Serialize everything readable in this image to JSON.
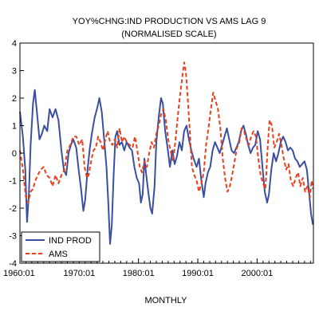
{
  "chart_data": {
    "type": "line",
    "title": "YOY%CHNG:IND PRODUCTION VS AMS LAG 9",
    "subtitle": "(NORMALISED SCALE)",
    "xlabel": "MONTHLY",
    "ylabel": "",
    "xlim": [
      1960.0,
      2009.5
    ],
    "ylim": [
      -4,
      4
    ],
    "y_ticks": [
      "4",
      "3",
      "2",
      "1",
      "0",
      "-1",
      "-2",
      "-3",
      "-4"
    ],
    "x_ticks": [
      {
        "label": "1960:01",
        "year": 1960.0
      },
      {
        "label": "1970:01",
        "year": 1970.0
      },
      {
        "label": "1980:01",
        "year": 1980.0
      },
      {
        "label": "1990:01",
        "year": 1990.0
      },
      {
        "label": "2000:01",
        "year": 2000.0
      }
    ],
    "legend_position": "bottom-left",
    "grid": false,
    "series": [
      {
        "name": "IND PROD",
        "color": "#3a4fa0",
        "style": "solid",
        "points": [
          [
            1960.0,
            1.5
          ],
          [
            1960.5,
            0.6
          ],
          [
            1960.9,
            -0.6
          ],
          [
            1961.2,
            -2.5
          ],
          [
            1961.5,
            -1.5
          ],
          [
            1961.8,
            0.3
          ],
          [
            1962.2,
            1.8
          ],
          [
            1962.5,
            2.3
          ],
          [
            1962.9,
            1.4
          ],
          [
            1963.3,
            0.5
          ],
          [
            1963.7,
            0.7
          ],
          [
            1964.1,
            1.0
          ],
          [
            1964.6,
            0.8
          ],
          [
            1965.0,
            1.6
          ],
          [
            1965.5,
            1.3
          ],
          [
            1966.0,
            1.6
          ],
          [
            1966.5,
            1.2
          ],
          [
            1967.0,
            0.1
          ],
          [
            1967.4,
            -0.6
          ],
          [
            1967.8,
            -0.8
          ],
          [
            1968.2,
            0.0
          ],
          [
            1968.6,
            0.3
          ],
          [
            1969.0,
            0.5
          ],
          [
            1969.5,
            0.2
          ],
          [
            1969.9,
            -0.6
          ],
          [
            1970.3,
            -1.3
          ],
          [
            1970.7,
            -2.1
          ],
          [
            1971.0,
            -1.7
          ],
          [
            1971.4,
            -0.6
          ],
          [
            1971.8,
            0.2
          ],
          [
            1972.2,
            0.8
          ],
          [
            1972.6,
            1.3
          ],
          [
            1973.0,
            1.6
          ],
          [
            1973.4,
            2.0
          ],
          [
            1973.8,
            1.5
          ],
          [
            1974.2,
            0.5
          ],
          [
            1974.6,
            -0.5
          ],
          [
            1974.9,
            -1.8
          ],
          [
            1975.2,
            -3.3
          ],
          [
            1975.5,
            -2.6
          ],
          [
            1975.8,
            -0.8
          ],
          [
            1976.1,
            0.6
          ],
          [
            1976.4,
            0.8
          ],
          [
            1976.8,
            0.3
          ],
          [
            1977.2,
            0.4
          ],
          [
            1977.6,
            0.1
          ],
          [
            1978.0,
            0.4
          ],
          [
            1978.5,
            0.2
          ],
          [
            1978.9,
            0.1
          ],
          [
            1979.3,
            -0.5
          ],
          [
            1979.7,
            -0.9
          ],
          [
            1980.1,
            -1.1
          ],
          [
            1980.4,
            -1.8
          ],
          [
            1980.7,
            -1.5
          ],
          [
            1981.0,
            -0.2
          ],
          [
            1981.3,
            -0.8
          ],
          [
            1981.7,
            -1.5
          ],
          [
            1982.0,
            -2.0
          ],
          [
            1982.3,
            -2.2
          ],
          [
            1982.7,
            -1.2
          ],
          [
            1983.0,
            0.4
          ],
          [
            1983.4,
            1.3
          ],
          [
            1983.8,
            2.0
          ],
          [
            1984.1,
            1.8
          ],
          [
            1984.5,
            0.8
          ],
          [
            1984.9,
            0.2
          ],
          [
            1985.3,
            -0.5
          ],
          [
            1985.7,
            0.1
          ],
          [
            1986.1,
            -0.4
          ],
          [
            1986.5,
            -0.1
          ],
          [
            1986.9,
            0.4
          ],
          [
            1987.3,
            0.1
          ],
          [
            1987.7,
            0.8
          ],
          [
            1988.1,
            1.0
          ],
          [
            1988.5,
            0.5
          ],
          [
            1988.9,
            0.1
          ],
          [
            1989.3,
            -0.2
          ],
          [
            1989.8,
            -0.5
          ],
          [
            1990.2,
            -0.2
          ],
          [
            1990.6,
            -1.0
          ],
          [
            1991.0,
            -1.6
          ],
          [
            1991.3,
            -1.1
          ],
          [
            1991.7,
            -0.7
          ],
          [
            1992.1,
            -0.5
          ],
          [
            1992.5,
            0.1
          ],
          [
            1992.9,
            0.4
          ],
          [
            1993.3,
            0.2
          ],
          [
            1993.7,
            0.0
          ],
          [
            1994.1,
            0.3
          ],
          [
            1994.5,
            0.6
          ],
          [
            1994.9,
            0.9
          ],
          [
            1995.3,
            0.5
          ],
          [
            1995.7,
            0.1
          ],
          [
            1996.1,
            0.0
          ],
          [
            1996.5,
            0.2
          ],
          [
            1996.9,
            0.4
          ],
          [
            1997.3,
            0.8
          ],
          [
            1997.7,
            1.0
          ],
          [
            1998.1,
            0.7
          ],
          [
            1998.5,
            0.3
          ],
          [
            1998.9,
            0.0
          ],
          [
            1999.3,
            0.2
          ],
          [
            1999.7,
            0.3
          ],
          [
            2000.1,
            0.8
          ],
          [
            2000.5,
            0.5
          ],
          [
            2000.9,
            -0.5
          ],
          [
            2001.3,
            -1.4
          ],
          [
            2001.7,
            -1.8
          ],
          [
            2002.0,
            -1.5
          ],
          [
            2002.4,
            -0.6
          ],
          [
            2002.8,
            0.0
          ],
          [
            2003.2,
            -0.3
          ],
          [
            2003.6,
            0.0
          ],
          [
            2004.0,
            0.4
          ],
          [
            2004.4,
            0.6
          ],
          [
            2004.8,
            0.4
          ],
          [
            2005.2,
            0.1
          ],
          [
            2005.6,
            0.2
          ],
          [
            2006.0,
            0.1
          ],
          [
            2006.4,
            -0.2
          ],
          [
            2006.8,
            -0.3
          ],
          [
            2007.2,
            -0.5
          ],
          [
            2007.6,
            -0.4
          ],
          [
            2008.0,
            -0.3
          ],
          [
            2008.4,
            -0.6
          ],
          [
            2008.8,
            -1.5
          ],
          [
            2009.1,
            -2.2
          ],
          [
            2009.4,
            -2.6
          ]
        ]
      },
      {
        "name": "AMS",
        "color": "#e8401c",
        "style": "dashed",
        "points": [
          [
            1960.0,
            0.1
          ],
          [
            1960.5,
            -0.6
          ],
          [
            1961.0,
            -1.6
          ],
          [
            1961.4,
            -1.8
          ],
          [
            1961.8,
            -1.4
          ],
          [
            1962.2,
            -1.3
          ],
          [
            1962.6,
            -1.0
          ],
          [
            1963.0,
            -0.8
          ],
          [
            1963.5,
            -0.6
          ],
          [
            1964.0,
            -0.5
          ],
          [
            1964.5,
            -0.8
          ],
          [
            1965.0,
            -0.9
          ],
          [
            1965.5,
            -1.2
          ],
          [
            1966.0,
            -0.8
          ],
          [
            1966.5,
            -1.1
          ],
          [
            1967.0,
            -0.8
          ],
          [
            1967.5,
            -0.6
          ],
          [
            1968.0,
            0.1
          ],
          [
            1968.5,
            0.3
          ],
          [
            1969.0,
            0.6
          ],
          [
            1969.5,
            0.6
          ],
          [
            1970.0,
            0.3
          ],
          [
            1970.5,
            0.5
          ],
          [
            1970.9,
            -0.5
          ],
          [
            1971.3,
            -0.9
          ],
          [
            1971.6,
            -0.8
          ],
          [
            1972.0,
            -0.3
          ],
          [
            1972.4,
            0.1
          ],
          [
            1972.8,
            0.2
          ],
          [
            1973.2,
            0.6
          ],
          [
            1973.6,
            0.4
          ],
          [
            1974.0,
            0.1
          ],
          [
            1974.4,
            0.5
          ],
          [
            1974.8,
            0.8
          ],
          [
            1975.2,
            0.4
          ],
          [
            1975.6,
            0.3
          ],
          [
            1976.0,
            0.5
          ],
          [
            1976.4,
            0.2
          ],
          [
            1976.8,
            0.9
          ],
          [
            1977.2,
            0.4
          ],
          [
            1977.6,
            0.6
          ],
          [
            1978.0,
            0.4
          ],
          [
            1978.5,
            0.3
          ],
          [
            1979.0,
            0.2
          ],
          [
            1979.4,
            0.6
          ],
          [
            1979.8,
            0.1
          ],
          [
            1980.2,
            -0.5
          ],
          [
            1980.6,
            -0.7
          ],
          [
            1981.0,
            -0.3
          ],
          [
            1981.4,
            -0.5
          ],
          [
            1981.8,
            0.0
          ],
          [
            1982.2,
            0.4
          ],
          [
            1982.6,
            0.2
          ],
          [
            1983.0,
            0.7
          ],
          [
            1983.4,
            1.0
          ],
          [
            1983.8,
            1.4
          ],
          [
            1984.2,
            1.6
          ],
          [
            1984.6,
            1.2
          ],
          [
            1985.0,
            0.5
          ],
          [
            1985.4,
            0.1
          ],
          [
            1985.8,
            -0.3
          ],
          [
            1986.2,
            0.4
          ],
          [
            1986.6,
            1.3
          ],
          [
            1987.0,
            2.1
          ],
          [
            1987.4,
            2.8
          ],
          [
            1987.7,
            3.3
          ],
          [
            1988.0,
            2.9
          ],
          [
            1988.3,
            2.0
          ],
          [
            1988.7,
            0.6
          ],
          [
            1989.0,
            -0.5
          ],
          [
            1989.4,
            -0.8
          ],
          [
            1989.8,
            -1.0
          ],
          [
            1990.2,
            -1.4
          ],
          [
            1990.6,
            -1.1
          ],
          [
            1991.0,
            -0.7
          ],
          [
            1991.4,
            0.3
          ],
          [
            1991.8,
            0.9
          ],
          [
            1992.2,
            1.6
          ],
          [
            1992.6,
            2.2
          ],
          [
            1993.0,
            1.9
          ],
          [
            1993.4,
            1.6
          ],
          [
            1993.8,
            0.9
          ],
          [
            1994.2,
            -0.2
          ],
          [
            1994.6,
            -0.9
          ],
          [
            1995.0,
            -1.4
          ],
          [
            1995.4,
            -1.2
          ],
          [
            1995.8,
            -0.8
          ],
          [
            1996.2,
            -0.3
          ],
          [
            1996.6,
            0.2
          ],
          [
            1997.0,
            0.4
          ],
          [
            1997.4,
            0.9
          ],
          [
            1997.8,
            0.8
          ],
          [
            1998.2,
            0.5
          ],
          [
            1998.6,
            0.3
          ],
          [
            1999.0,
            0.6
          ],
          [
            1999.4,
            0.8
          ],
          [
            1999.8,
            0.6
          ],
          [
            2000.2,
            -0.2
          ],
          [
            2000.6,
            -0.8
          ],
          [
            2001.0,
            -1.1
          ],
          [
            2001.4,
            -1.3
          ],
          [
            2001.8,
            0.3
          ],
          [
            2002.1,
            1.2
          ],
          [
            2002.5,
            1.0
          ],
          [
            2002.9,
            0.2
          ],
          [
            2003.3,
            0.4
          ],
          [
            2003.7,
            0.7
          ],
          [
            2004.1,
            0.3
          ],
          [
            2004.5,
            -0.2
          ],
          [
            2004.9,
            -0.6
          ],
          [
            2005.3,
            -0.4
          ],
          [
            2005.7,
            -1.0
          ],
          [
            2006.1,
            -1.2
          ],
          [
            2006.5,
            -0.9
          ],
          [
            2006.9,
            -0.7
          ],
          [
            2007.3,
            -1.2
          ],
          [
            2007.7,
            -0.9
          ],
          [
            2008.1,
            -1.4
          ],
          [
            2008.5,
            -1.2
          ],
          [
            2008.9,
            -1.6
          ],
          [
            2009.2,
            -1.0
          ],
          [
            2009.4,
            -1.3
          ]
        ]
      }
    ]
  }
}
